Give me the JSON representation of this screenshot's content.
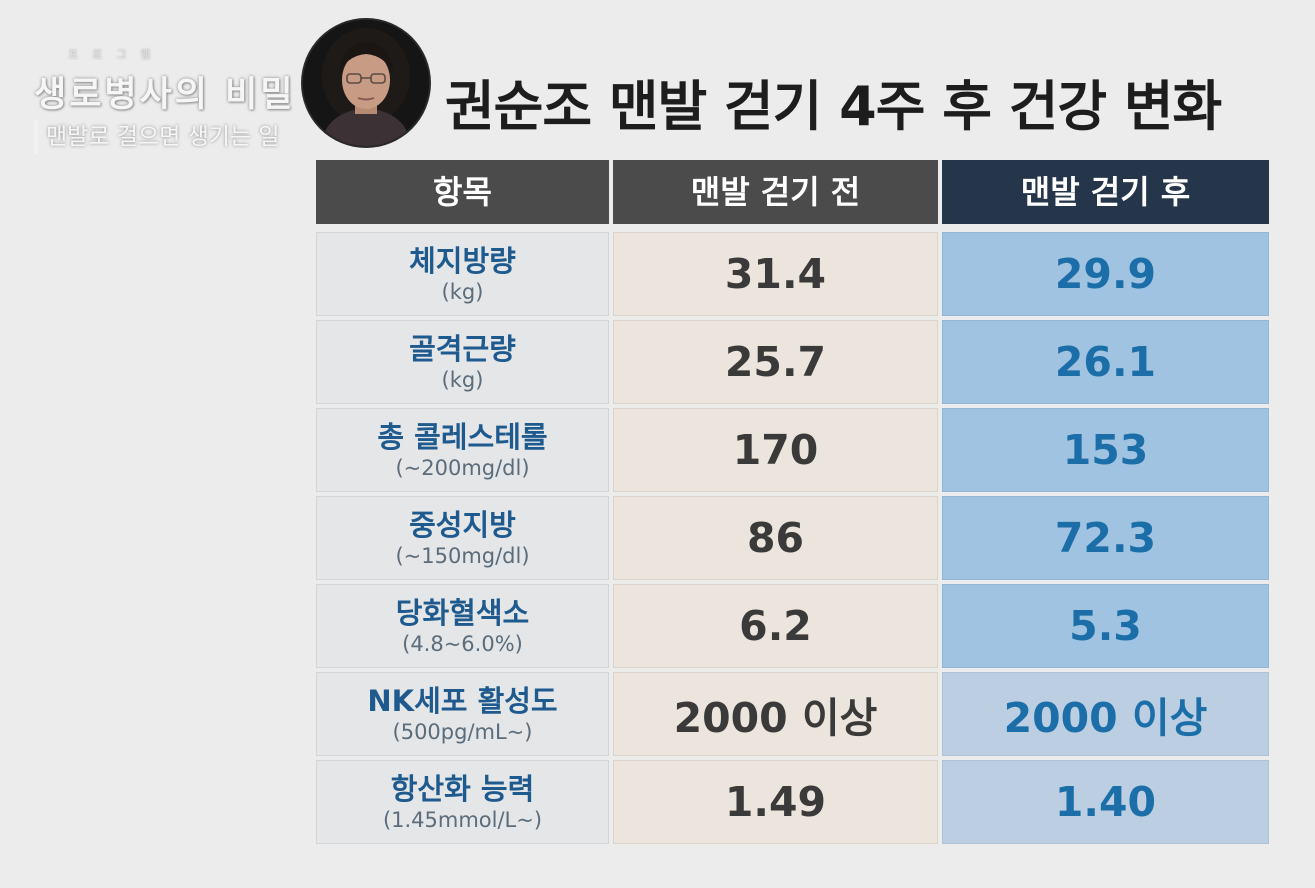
{
  "logo": {
    "small_text": "프로그램",
    "main_text": "생로병사의 비밀",
    "sub_text": "맨발로 걸으면 생기는 일"
  },
  "title": "권순조 맨발 걷기 4주 후 건강 변화",
  "table": {
    "headers": [
      "항목",
      "맨발 걷기 전",
      "맨발 걷기 후"
    ],
    "rows": [
      {
        "name": "체지방량",
        "unit": "(kg)",
        "before": "31.4",
        "after": "29.9"
      },
      {
        "name": "골격근량",
        "unit": "(kg)",
        "before": "25.7",
        "after": "26.1"
      },
      {
        "name": "총 콜레스테롤",
        "unit": "(~200mg/dl)",
        "before": "170",
        "after": "153"
      },
      {
        "name": "중성지방",
        "unit": "(~150mg/dl)",
        "before": "86",
        "after": "72.3"
      },
      {
        "name": "당화혈색소",
        "unit": "(4.8~6.0%)",
        "before": "6.2",
        "after": "5.3"
      },
      {
        "name": "NK세포 활성도",
        "unit": "(500pg/mL~)",
        "before": "2000 이상",
        "after": "2000 이상"
      },
      {
        "name": "항산화 능력",
        "unit": "(1.45mmol/L~)",
        "before": "1.49",
        "after": "1.40"
      }
    ]
  },
  "colors": {
    "header_dark": "#4b4b4b",
    "header_navy": "#25364a",
    "item_text": "#1f5a8f",
    "after_text": "#1c6ea9",
    "after_bg": "#9fc3e0",
    "before_bg": "#ebe5dd"
  }
}
